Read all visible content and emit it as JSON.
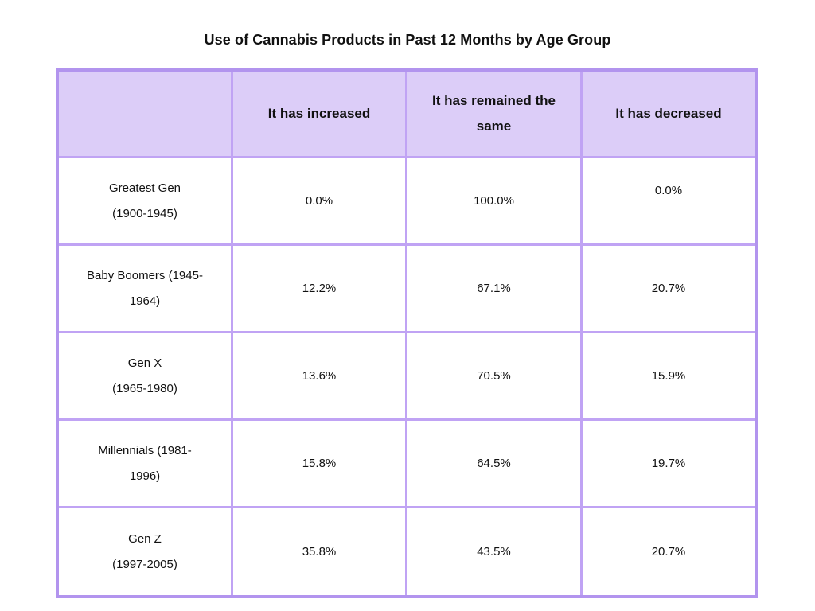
{
  "title": "Use of Cannabis Products in Past 12 Months by Age Group",
  "table": {
    "headers": [
      "",
      "It has increased",
      "It has remained the same",
      "It has decreased"
    ],
    "rows": [
      {
        "label_line1": "Greatest Gen",
        "label_line2": "(1900-1945)",
        "increased": "0.0%",
        "remained": "100.0%",
        "decreased": "0.0%"
      },
      {
        "label_line1": "Baby Boomers (1945-",
        "label_line2": "1964)",
        "increased": "12.2%",
        "remained": "67.1%",
        "decreased": "20.7%"
      },
      {
        "label_line1": "Gen X",
        "label_line2": "(1965-1980)",
        "increased": "13.6%",
        "remained": "70.5%",
        "decreased": "15.9%"
      },
      {
        "label_line1": "Millennials (1981-",
        "label_line2": "1996)",
        "increased": "15.8%",
        "remained": "64.5%",
        "decreased": "19.7%"
      },
      {
        "label_line1": "Gen Z",
        "label_line2": "(1997-2005)",
        "increased": "35.8%",
        "remained": "43.5%",
        "decreased": "20.7%"
      }
    ]
  },
  "chart_data": {
    "type": "table",
    "title": "Use of Cannabis Products in Past 12 Months by Age Group",
    "categories": [
      "Greatest Gen (1900-1945)",
      "Baby Boomers (1945-1964)",
      "Gen X (1965-1980)",
      "Millennials (1981-1996)",
      "Gen Z (1997-2005)"
    ],
    "series": [
      {
        "name": "It has increased",
        "values": [
          0.0,
          12.2,
          13.6,
          15.8,
          35.8
        ]
      },
      {
        "name": "It has remained the same",
        "values": [
          100.0,
          67.1,
          70.5,
          64.5,
          43.5
        ]
      },
      {
        "name": "It has decreased",
        "values": [
          0.0,
          20.7,
          15.9,
          19.7,
          20.7
        ]
      }
    ],
    "unit": "%"
  },
  "colors": {
    "header_bg": "#dccdf8",
    "grid_line": "#c0a3f4",
    "outer_border": "#b294ee",
    "text": "#111111",
    "page_bg": "#ffffff"
  }
}
